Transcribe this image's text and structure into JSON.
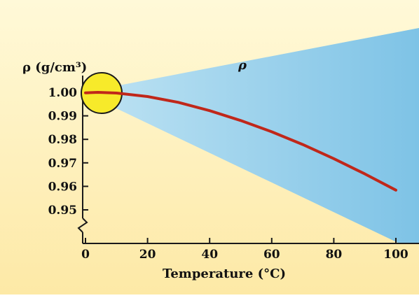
{
  "chart_data": {
    "type": "line",
    "ylabel": "ρ (g/cm³)",
    "xlabel": "Temperature (°C)",
    "wedge_label": "ρ",
    "xlim": [
      0,
      100
    ],
    "ylim": [
      0.95,
      1.0
    ],
    "x_ticks": [
      "0",
      "20",
      "40",
      "60",
      "80",
      "100"
    ],
    "y_ticks": [
      "1.00",
      "0.99",
      "0.98",
      "0.97",
      "0.96",
      "0.95"
    ],
    "y_axis_break": true,
    "highlight": "maximum density near 4 °C",
    "series": [
      {
        "x": [
          0,
          4,
          10,
          20,
          30,
          40,
          50,
          60,
          70,
          80,
          90,
          100
        ],
        "y": [
          0.9998,
          1.0,
          0.9997,
          0.9982,
          0.9957,
          0.9922,
          0.988,
          0.9832,
          0.9778,
          0.9718,
          0.9653,
          0.9584
        ]
      }
    ],
    "colors": {
      "background": "#fdf1b6",
      "wedge": "#9fd3ec",
      "curve": "#c0271a",
      "highlight_fill": "#f7ea2a",
      "highlight_stroke": "#1a1a1a"
    }
  }
}
